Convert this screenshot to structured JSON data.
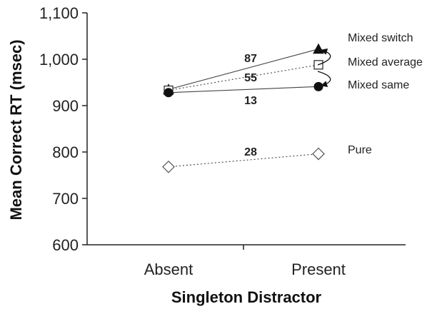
{
  "chart_data": {
    "type": "line",
    "ylabel": "Mean Correct RT (msec)",
    "xlabel": "Singleton Distractor",
    "categories": [
      "Absent",
      "Present"
    ],
    "ylim": [
      600,
      1100
    ],
    "yticks": [
      600,
      700,
      800,
      900,
      1000,
      1100
    ],
    "ytick_labels": [
      "600",
      "700",
      "800",
      "900",
      "1,000",
      "1,100"
    ],
    "grid": false,
    "series": [
      {
        "name": "Mixed switch",
        "values": [
          935,
          1022
        ],
        "marker": "filled-triangle",
        "line": "solid",
        "difference_label": "87"
      },
      {
        "name": "Mixed average",
        "values": [
          933,
          988
        ],
        "marker": "open-square",
        "line": "dotted",
        "difference_label": "55"
      },
      {
        "name": "Mixed same",
        "values": [
          928,
          941
        ],
        "marker": "filled-circle",
        "line": "solid",
        "difference_label": "13"
      },
      {
        "name": "Pure",
        "values": [
          768,
          796
        ],
        "marker": "open-diamond",
        "line": "dotted",
        "difference_label": "28"
      }
    ]
  }
}
